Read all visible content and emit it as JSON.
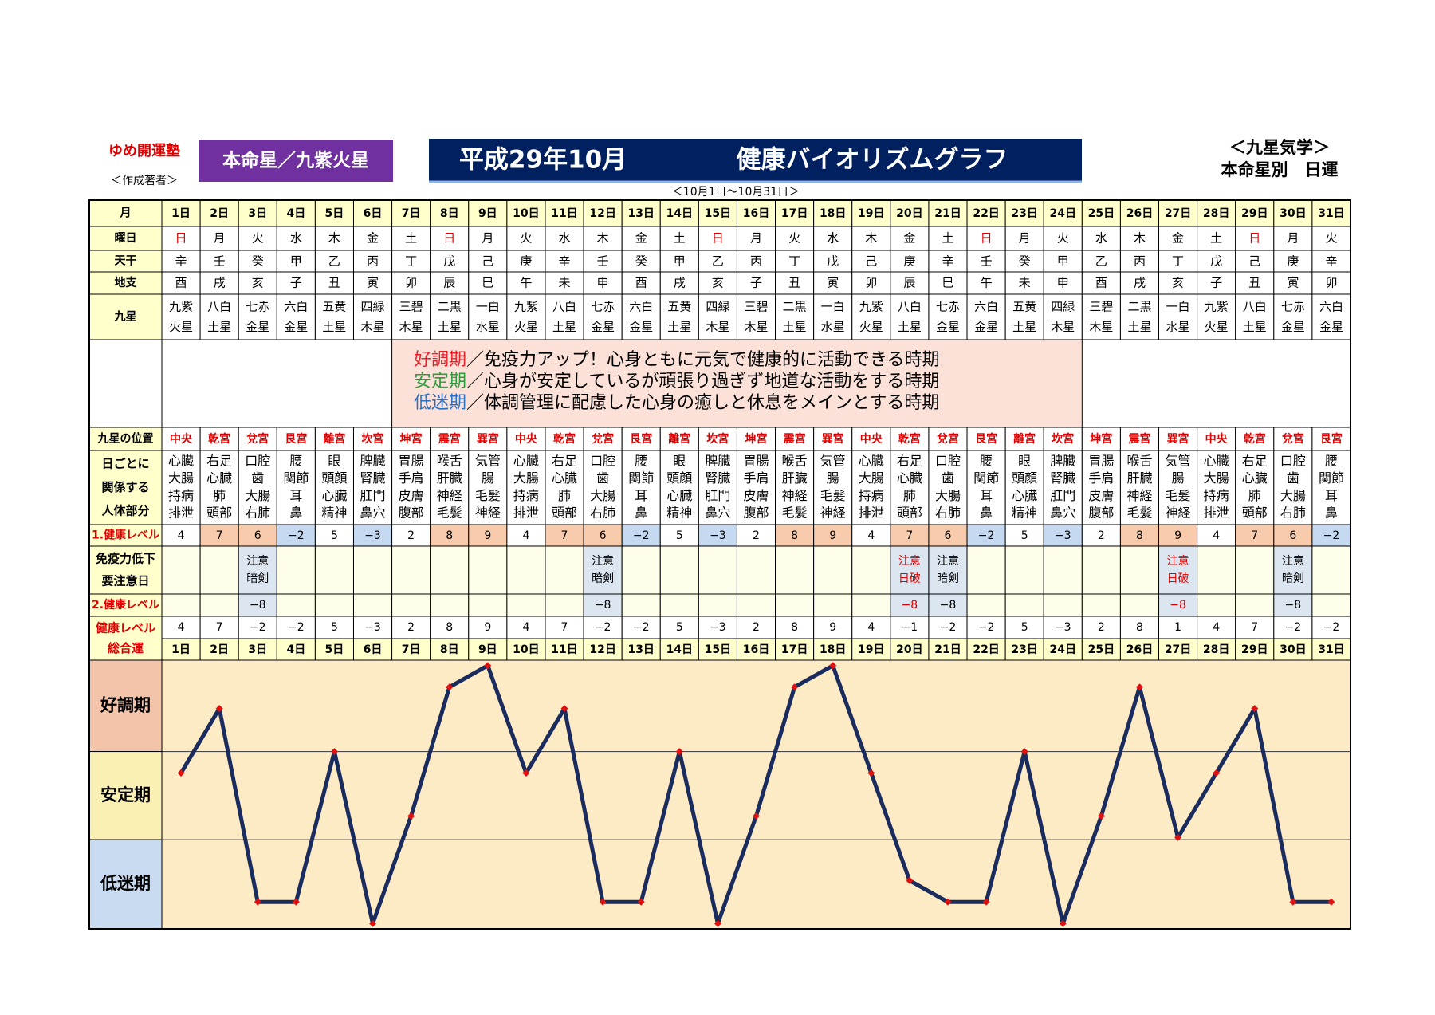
{
  "header": {
    "org": "ゆめ開運塾",
    "author": "＜作成著者＞",
    "honmei": "本命星／九紫火星",
    "month": "平成29年10月",
    "title": "健康バイオリズムグラフ",
    "school": "＜九星気学＞",
    "kind": "本命星別　日運",
    "subtitle": "＜10月1日～10月31日＞"
  },
  "table": {
    "row_labels": {
      "month": [
        "月"
      ],
      "weekday": [
        "曜日"
      ],
      "stem": [
        "天干"
      ],
      "branch": [
        "地支"
      ],
      "star": [
        "九星"
      ],
      "position": [
        "九星の位置"
      ],
      "body": [
        "日ごとに",
        "関係する",
        "人体部分"
      ],
      "level1": [
        "1.健康レベル"
      ],
      "immunity": [
        "免疫力低下",
        "要注意日"
      ],
      "level2": [
        "2.健康レベル"
      ],
      "total": [
        "健康レベル",
        "総合運"
      ]
    },
    "days": [
      "1日",
      "2日",
      "3日",
      "4日",
      "5日",
      "6日",
      "7日",
      "8日",
      "9日",
      "10日",
      "11日",
      "12日",
      "13日",
      "14日",
      "15日",
      "16日",
      "17日",
      "18日",
      "19日",
      "20日",
      "21日",
      "22日",
      "23日",
      "24日",
      "25日",
      "26日",
      "27日",
      "28日",
      "29日",
      "30日",
      "31日"
    ],
    "weekdays": [
      "日",
      "月",
      "火",
      "水",
      "木",
      "金",
      "土",
      "日",
      "月",
      "火",
      "水",
      "木",
      "金",
      "土",
      "日",
      "月",
      "火",
      "水",
      "木",
      "金",
      "土",
      "日",
      "月",
      "火",
      "水",
      "木",
      "金",
      "土",
      "日",
      "月",
      "火"
    ],
    "stems": [
      "辛",
      "壬",
      "癸",
      "甲",
      "乙",
      "丙",
      "丁",
      "戊",
      "己",
      "庚",
      "辛",
      "壬",
      "癸",
      "甲",
      "乙",
      "丙",
      "丁",
      "戊",
      "己",
      "庚",
      "辛",
      "壬",
      "癸",
      "甲",
      "乙",
      "丙",
      "丁",
      "戊",
      "己",
      "庚",
      "辛"
    ],
    "branches": [
      "酉",
      "戌",
      "亥",
      "子",
      "丑",
      "寅",
      "卯",
      "辰",
      "巳",
      "午",
      "未",
      "申",
      "酉",
      "戌",
      "亥",
      "子",
      "丑",
      "寅",
      "卯",
      "辰",
      "巳",
      "午",
      "未",
      "申",
      "酉",
      "戌",
      "亥",
      "子",
      "丑",
      "寅",
      "卯"
    ],
    "stars": [
      [
        "九紫",
        "火星"
      ],
      [
        "八白",
        "土星"
      ],
      [
        "七赤",
        "金星"
      ],
      [
        "六白",
        "金星"
      ],
      [
        "五黄",
        "土星"
      ],
      [
        "四緑",
        "木星"
      ],
      [
        "三碧",
        "木星"
      ],
      [
        "二黒",
        "土星"
      ],
      [
        "一白",
        "水星"
      ],
      [
        "九紫",
        "火星"
      ],
      [
        "八白",
        "土星"
      ],
      [
        "七赤",
        "金星"
      ],
      [
        "六白",
        "金星"
      ],
      [
        "五黄",
        "土星"
      ],
      [
        "四緑",
        "木星"
      ],
      [
        "三碧",
        "木星"
      ],
      [
        "二黒",
        "土星"
      ],
      [
        "一白",
        "水星"
      ],
      [
        "九紫",
        "火星"
      ],
      [
        "八白",
        "土星"
      ],
      [
        "七赤",
        "金星"
      ],
      [
        "六白",
        "金星"
      ],
      [
        "五黄",
        "土星"
      ],
      [
        "四緑",
        "木星"
      ],
      [
        "三碧",
        "木星"
      ],
      [
        "二黒",
        "土星"
      ],
      [
        "一白",
        "水星"
      ],
      [
        "九紫",
        "火星"
      ],
      [
        "八白",
        "土星"
      ],
      [
        "七赤",
        "金星"
      ],
      [
        "六白",
        "金星"
      ]
    ],
    "positions": [
      "中央",
      "乾宮",
      "兌宮",
      "艮宮",
      "離宮",
      "坎宮",
      "坤宮",
      "震宮",
      "巽宮",
      "中央",
      "乾宮",
      "兌宮",
      "艮宮",
      "離宮",
      "坎宮",
      "坤宮",
      "震宮",
      "巽宮",
      "中央",
      "乾宮",
      "兌宮",
      "艮宮",
      "離宮",
      "坎宮",
      "坤宮",
      "震宮",
      "巽宮",
      "中央",
      "乾宮",
      "兌宮",
      "艮宮"
    ],
    "body_parts": [
      [
        "心臓",
        "大腸",
        "持病",
        "排泄"
      ],
      [
        "右足",
        "心臓",
        "肺",
        "頭部"
      ],
      [
        "口腔",
        "歯",
        "大腸",
        "右肺"
      ],
      [
        "腰",
        "関節",
        "耳",
        "鼻"
      ],
      [
        "眼",
        "頭顔",
        "心臓",
        "精神"
      ],
      [
        "脾臓",
        "腎臓",
        "肛門",
        "鼻穴"
      ],
      [
        "胃腸",
        "手肩",
        "皮膚",
        "腹部"
      ],
      [
        "喉舌",
        "肝臓",
        "神経",
        "毛髪"
      ],
      [
        "気管",
        "腸",
        "毛髪",
        "神経"
      ],
      [
        "心臓",
        "大腸",
        "持病",
        "排泄"
      ],
      [
        "右足",
        "心臓",
        "肺",
        "頭部"
      ],
      [
        "口腔",
        "歯",
        "大腸",
        "右肺"
      ],
      [
        "腰",
        "関節",
        "耳",
        "鼻"
      ],
      [
        "眼",
        "頭顔",
        "心臓",
        "精神"
      ],
      [
        "脾臓",
        "腎臓",
        "肛門",
        "鼻穴"
      ],
      [
        "胃腸",
        "手肩",
        "皮膚",
        "腹部"
      ],
      [
        "喉舌",
        "肝臓",
        "神経",
        "毛髪"
      ],
      [
        "気管",
        "腸",
        "毛髪",
        "神経"
      ],
      [
        "心臓",
        "大腸",
        "持病",
        "排泄"
      ],
      [
        "右足",
        "心臓",
        "肺",
        "頭部"
      ],
      [
        "口腔",
        "歯",
        "大腸",
        "右肺"
      ],
      [
        "腰",
        "関節",
        "耳",
        "鼻"
      ],
      [
        "眼",
        "頭顔",
        "心臓",
        "精神"
      ],
      [
        "脾臓",
        "腎臓",
        "肛門",
        "鼻穴"
      ],
      [
        "胃腸",
        "手肩",
        "皮膚",
        "腹部"
      ],
      [
        "喉舌",
        "肝臓",
        "神経",
        "毛髪"
      ],
      [
        "気管",
        "腸",
        "毛髪",
        "神経"
      ],
      [
        "心臓",
        "大腸",
        "持病",
        "排泄"
      ],
      [
        "右足",
        "心臓",
        "肺",
        "頭部"
      ],
      [
        "口腔",
        "歯",
        "大腸",
        "右肺"
      ],
      [
        "腰",
        "関節",
        "耳",
        "鼻"
      ]
    ],
    "level1": {
      "values": [
        4,
        7,
        6,
        -2,
        5,
        -3,
        2,
        8,
        9,
        4,
        7,
        6,
        -2,
        5,
        -3,
        2,
        8,
        9,
        4,
        7,
        6,
        -2,
        5,
        -3,
        2,
        8,
        9,
        4,
        7,
        6,
        -2
      ],
      "value_labels": [
        "4",
        "7",
        "6",
        "−2",
        "5",
        "−3",
        "2",
        "8",
        "9",
        "4",
        "7",
        "6",
        "−2",
        "5",
        "−3",
        "2",
        "8",
        "9",
        "4",
        "7",
        "6",
        "−2",
        "5",
        "−3",
        "2",
        "8",
        "9",
        "4",
        "7",
        "6",
        "−2"
      ]
    },
    "immunity": [
      null,
      null,
      [
        "注意",
        "暗剣"
      ],
      null,
      null,
      null,
      null,
      null,
      null,
      null,
      null,
      [
        "注意",
        "暗剣"
      ],
      null,
      null,
      null,
      null,
      null,
      null,
      null,
      [
        "注意",
        "日破"
      ],
      [
        "注意",
        "暗剣"
      ],
      null,
      null,
      null,
      null,
      null,
      [
        "注意",
        "日破"
      ],
      null,
      null,
      [
        "注意",
        "暗剣"
      ],
      null
    ],
    "level2": {
      "values": [
        null,
        null,
        -8,
        null,
        null,
        null,
        null,
        null,
        null,
        null,
        null,
        -8,
        null,
        null,
        null,
        null,
        null,
        null,
        null,
        -8,
        -8,
        null,
        null,
        null,
        null,
        null,
        -8,
        null,
        null,
        -8,
        null
      ],
      "value_labels": [
        null,
        null,
        "−8",
        null,
        null,
        null,
        null,
        null,
        null,
        null,
        null,
        "−8",
        null,
        null,
        null,
        null,
        null,
        null,
        null,
        "−8",
        "−8",
        null,
        null,
        null,
        null,
        null,
        "−8",
        null,
        null,
        "−8",
        null
      ]
    }
  },
  "legend": [
    {
      "term": "好調期",
      "text": "／免疫力アップ！心身ともに元気で健康的に活動できる時期",
      "color": "#e8202a"
    },
    {
      "term": "安定期",
      "text": "／心身が安定しているが頑張り過ぎず地道な活動をする時期",
      "color": "#2e9b3e"
    },
    {
      "term": "低迷期",
      "text": "／体調管理に配慮した心身の癒しと休息をメインとする時期",
      "color": "#2f6fc0"
    }
  ],
  "chart_data": {
    "type": "line",
    "categories": [
      "1日",
      "2日",
      "3日",
      "4日",
      "5日",
      "6日",
      "7日",
      "8日",
      "9日",
      "10日",
      "11日",
      "12日",
      "13日",
      "14日",
      "15日",
      "16日",
      "17日",
      "18日",
      "19日",
      "20日",
      "21日",
      "22日",
      "23日",
      "24日",
      "25日",
      "26日",
      "27日",
      "28日",
      "29日",
      "30日",
      "31日"
    ],
    "values": [
      4,
      7,
      -2,
      -2,
      5,
      -3,
      2,
      8,
      9,
      4,
      7,
      -2,
      -2,
      5,
      -3,
      2,
      8,
      9,
      4,
      -1,
      -2,
      -2,
      5,
      -3,
      2,
      8,
      1,
      4,
      7,
      -2,
      -2
    ],
    "value_labels": [
      "4",
      "7",
      "−2",
      "−2",
      "5",
      "−3",
      "2",
      "8",
      "9",
      "4",
      "7",
      "−2",
      "−2",
      "5",
      "−3",
      "2",
      "8",
      "9",
      "4",
      "−1",
      "−2",
      "−2",
      "5",
      "−3",
      "2",
      "8",
      "1",
      "4",
      "7",
      "−2",
      "−2"
    ],
    "color": "#1a2b5e",
    "marker_color": "#e01010",
    "ylim": [
      -3.25,
      9.25
    ],
    "bands": [
      {
        "label": "好調期",
        "range": [
          5,
          9.25
        ],
        "color": "#f4c4aa"
      },
      {
        "label": "安定期",
        "range": [
          0.9,
          5
        ],
        "color": "#fbf0b4"
      },
      {
        "label": "低迷期",
        "range": [
          -3.25,
          0.9
        ],
        "color": "#c9dbf1"
      }
    ]
  }
}
